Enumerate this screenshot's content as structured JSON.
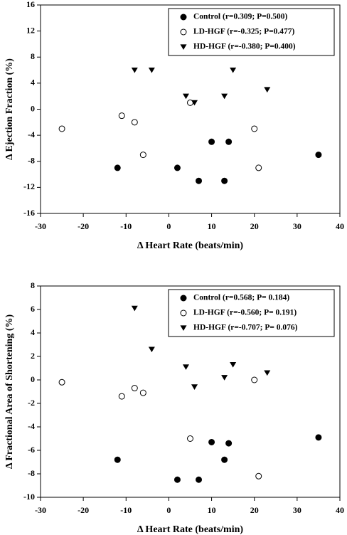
{
  "chart_data": [
    {
      "type": "scatter",
      "xlabel": "Δ Heart Rate (beats/min)",
      "ylabel": "Δ Ejection Fraction (%)",
      "xlim": [
        -30,
        40
      ],
      "xticks": [
        -30,
        -20,
        -10,
        0,
        10,
        20,
        30,
        40
      ],
      "ylim": [
        -16,
        16
      ],
      "yticks": [
        -16,
        -12,
        -8,
        -4,
        0,
        4,
        8,
        12,
        16
      ],
      "grid": false,
      "legend": "upper right",
      "series": [
        {
          "name": "Control (r=0.309; P=0.500)",
          "color": "#000000",
          "marker": "circle",
          "x": [
            -12,
            2,
            7,
            10,
            13,
            14,
            35
          ],
          "values": [
            -9,
            -9,
            -11,
            -5,
            -11,
            -5,
            -7
          ]
        },
        {
          "name": "LD-HGF (r=-0.325; P=0.477)",
          "color": "#000000",
          "marker": "circle-open",
          "x": [
            -25,
            -11,
            -8,
            -6,
            5,
            20,
            21
          ],
          "values": [
            -3,
            -1,
            -2,
            -7,
            1,
            -3,
            -9
          ]
        },
        {
          "name": "HD-HGF (r=-0.380; P=0.400)",
          "color": "#000000",
          "marker": "triangle-down",
          "x": [
            -8,
            -4,
            4,
            6,
            13,
            15,
            23
          ],
          "values": [
            6,
            6,
            2,
            1,
            2,
            6,
            3
          ]
        }
      ]
    },
    {
      "type": "scatter",
      "xlabel": "Δ Heart Rate (beats/min)",
      "ylabel": "Δ Fractional Area of Shortening (%)",
      "xlim": [
        -30,
        40
      ],
      "xticks": [
        -30,
        -20,
        -10,
        0,
        10,
        20,
        30,
        40
      ],
      "ylim": [
        -10,
        8
      ],
      "yticks": [
        -10,
        -8,
        -6,
        -4,
        -2,
        0,
        2,
        4,
        6,
        8
      ],
      "grid": false,
      "legend": "upper right",
      "series": [
        {
          "name": "Control (r=0.568; P= 0.184)",
          "color": "#000000",
          "marker": "circle",
          "x": [
            -12,
            2,
            7,
            10,
            13,
            14,
            35
          ],
          "values": [
            -6.8,
            -8.5,
            -8.5,
            -5.3,
            -6.8,
            -5.4,
            -4.9
          ]
        },
        {
          "name": "LD-HGF (r=-0.560; P= 0.191)",
          "color": "#000000",
          "marker": "circle-open",
          "x": [
            -25,
            -11,
            -8,
            -6,
            5,
            20,
            21
          ],
          "values": [
            -0.2,
            -1.4,
            -0.7,
            -1.1,
            -5.0,
            0,
            -8.2
          ]
        },
        {
          "name": "HD-HGF (r=-0.707; P= 0.076)",
          "color": "#000000",
          "marker": "triangle-down",
          "x": [
            -8,
            -4,
            4,
            6,
            13,
            15,
            23
          ],
          "values": [
            6.1,
            2.6,
            1.1,
            -0.6,
            0.2,
            1.3,
            0.6
          ]
        }
      ]
    }
  ]
}
